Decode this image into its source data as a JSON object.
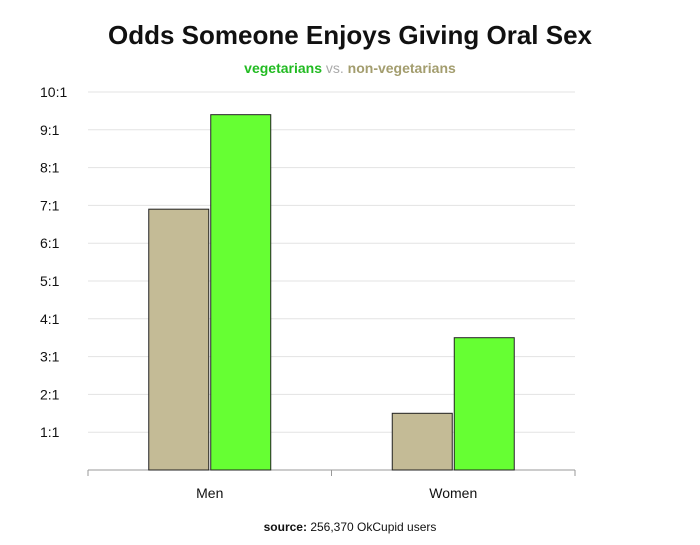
{
  "chart_data": {
    "type": "bar",
    "title": "Odds Someone Enjoys Giving Oral Sex",
    "subtitle": {
      "series_a": "vegetarians",
      "separator": "vs.",
      "series_b": "non-vegetarians"
    },
    "categories": [
      "Men",
      "Women"
    ],
    "series": [
      {
        "name": "non-vegetarians",
        "color": "#c4bb96",
        "values": [
          6.9,
          1.5
        ]
      },
      {
        "name": "vegetarians",
        "color": "#66ff33",
        "values": [
          9.4,
          3.5
        ]
      }
    ],
    "ylim": [
      0,
      10
    ],
    "yticks": [
      {
        "value": 1,
        "label": "1:1"
      },
      {
        "value": 2,
        "label": "2:1"
      },
      {
        "value": 3,
        "label": "3:1"
      },
      {
        "value": 4,
        "label": "4:1"
      },
      {
        "value": 5,
        "label": "5:1"
      },
      {
        "value": 6,
        "label": "6:1"
      },
      {
        "value": 7,
        "label": "7:1"
      },
      {
        "value": 8,
        "label": "8:1"
      },
      {
        "value": 9,
        "label": "9:1"
      },
      {
        "value": 10,
        "label": "10:1"
      }
    ],
    "grid": true,
    "xlabel": "",
    "ylabel": ""
  },
  "colors": {
    "vegetarian": "#22bb22",
    "non_vegetarian": "#a39d6e",
    "vs": "#aaaaaa",
    "grid": "#e3e3e3",
    "axis": "#999999",
    "bar_border": "#222222"
  },
  "source": {
    "label": "source:",
    "text": "256,370 OkCupid users"
  }
}
